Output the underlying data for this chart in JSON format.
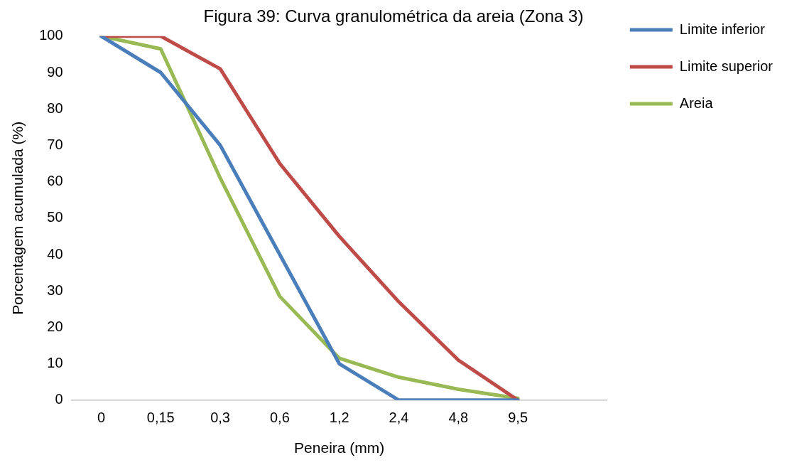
{
  "chart_data": {
    "type": "line",
    "title": "Figura 39: Curva granulométrica da areia (Zona 3)",
    "xlabel": "Peneira (mm)",
    "ylabel": "Porcentagem acumulada (%)",
    "categories": [
      "0",
      "0,15",
      "0,3",
      "0,6",
      "1,2",
      "2,4",
      "4,8",
      "9,5",
      null
    ],
    "series": [
      {
        "name": "Limite inferior",
        "color": "#4a7ebb",
        "values": [
          100,
          90,
          70,
          40,
          10,
          0,
          0,
          0,
          null
        ]
      },
      {
        "name": "Limite superior",
        "color": "#be4b48",
        "values": [
          100,
          100,
          91,
          65,
          45,
          27,
          11,
          0,
          null
        ]
      },
      {
        "name": "Areia",
        "color": "#98b954",
        "values": [
          100,
          96.5,
          61,
          28.5,
          11.5,
          6.3,
          3,
          0.5,
          null
        ]
      }
    ],
    "ylim": [
      0,
      100
    ],
    "yticks": [
      0,
      10,
      20,
      30,
      40,
      50,
      60,
      70,
      80,
      90,
      100
    ],
    "grid": false,
    "legend": "right",
    "marker": "none",
    "line_style": "solid"
  }
}
